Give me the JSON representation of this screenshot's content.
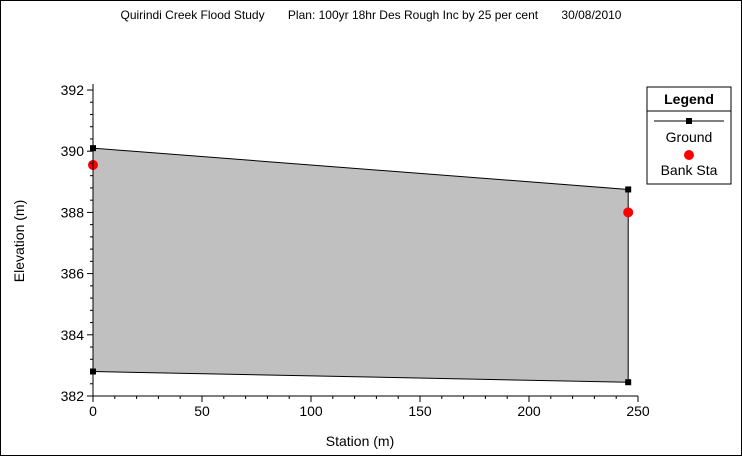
{
  "chart_data": {
    "type": "area",
    "title_parts": [
      "Quirindi Creek Flood Study",
      "Plan: 100yr 18hr Des Rough Inc by 25 per cent",
      "30/08/2010"
    ],
    "xlabel": "Station (m)",
    "ylabel": "Elevation (m)",
    "xlim": [
      0,
      250
    ],
    "ylim": [
      382,
      392
    ],
    "xticks": [
      0,
      50,
      100,
      150,
      200,
      250
    ],
    "yticks": [
      382,
      384,
      386,
      388,
      390,
      392
    ],
    "grid": false,
    "legend_position": "top-right",
    "legend_title": "Legend",
    "fill_color": "#c0c0c0",
    "series": [
      {
        "name": "Ground",
        "marker": "square",
        "color": "#000000",
        "points": [
          [
            0,
            382.8
          ],
          [
            0,
            390.1
          ],
          [
            245.5,
            388.75
          ],
          [
            245.5,
            382.45
          ],
          [
            0,
            382.8
          ]
        ]
      },
      {
        "name": "Bank Sta",
        "marker": "circle",
        "color": "#ff0000",
        "points": [
          [
            0,
            389.55
          ],
          [
            245.5,
            388.0
          ]
        ]
      }
    ]
  }
}
